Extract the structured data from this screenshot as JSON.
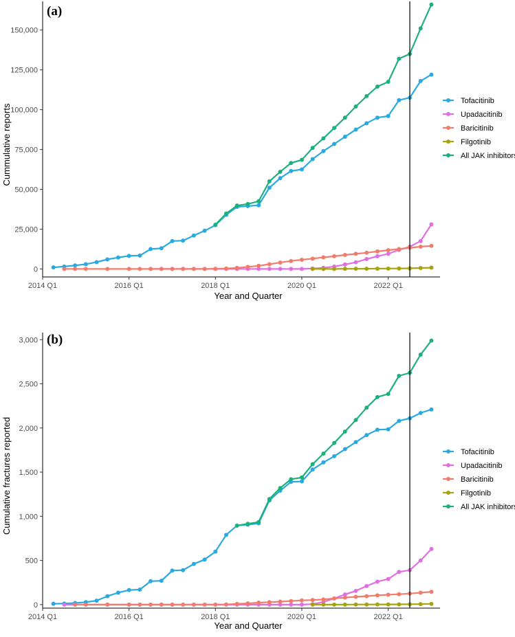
{
  "chart_data": [
    {
      "type": "line",
      "panel_label": "(a)",
      "title": "",
      "xlabel": "Year and Quarter",
      "ylabel": "Cummulative reports",
      "xlim": [
        2014.0,
        2023.2
      ],
      "ylim": [
        -5000,
        168000
      ],
      "x_ticks": [
        {
          "value": 2014.0,
          "label": "2014 Q1"
        },
        {
          "value": 2016.0,
          "label": "2016 Q1"
        },
        {
          "value": 2018.0,
          "label": "2018 Q1"
        },
        {
          "value": 2020.0,
          "label": "2020 Q1"
        },
        {
          "value": 2022.0,
          "label": "2022 Q1"
        }
      ],
      "y_ticks": [
        {
          "value": 0,
          "label": "0"
        },
        {
          "value": 25000,
          "label": "25,000"
        },
        {
          "value": 50000,
          "label": "50,000"
        },
        {
          "value": 75000,
          "label": "75,000"
        },
        {
          "value": 100000,
          "label": "100,000"
        },
        {
          "value": 125000,
          "label": "125,000"
        },
        {
          "value": 150000,
          "label": "150,000"
        }
      ],
      "vline_x": 2022.5,
      "legend_position": "right",
      "series": [
        {
          "name": "Tofacitinib",
          "color": "#29a9e0",
          "x": [
            2014.25,
            2014.5,
            2014.75,
            2015.0,
            2015.25,
            2015.5,
            2015.75,
            2016.0,
            2016.25,
            2016.5,
            2016.75,
            2017.0,
            2017.25,
            2017.5,
            2017.75,
            2018.0,
            2018.25,
            2018.5,
            2018.75,
            2019.0,
            2019.25,
            2019.5,
            2019.75,
            2020.0,
            2020.25,
            2020.5,
            2020.75,
            2021.0,
            2021.25,
            2021.5,
            2021.75,
            2022.0,
            2022.25,
            2022.5,
            2022.75,
            2023.0
          ],
          "values": [
            1000,
            1500,
            2200,
            3000,
            4300,
            6000,
            7200,
            8200,
            8400,
            12500,
            13000,
            17500,
            17800,
            21000,
            24000,
            27500,
            34000,
            39000,
            39500,
            40000,
            51000,
            57000,
            61500,
            62500,
            69000,
            74000,
            78500,
            83000,
            87500,
            91500,
            95000,
            96000,
            106000,
            107500,
            118000,
            122000
          ]
        },
        {
          "name": "Upadacitinib",
          "color": "#e06fe0",
          "x": [
            2016.5,
            2016.75,
            2017.0,
            2017.25,
            2017.5,
            2017.75,
            2018.0,
            2018.25,
            2018.5,
            2018.75,
            2019.0,
            2019.25,
            2019.5,
            2019.75,
            2020.0,
            2020.25,
            2020.5,
            2020.75,
            2021.0,
            2021.25,
            2021.5,
            2021.75,
            2022.0,
            2022.25,
            2022.5,
            2022.75,
            2023.0
          ],
          "values": [
            0,
            0,
            0,
            0,
            0,
            0,
            0,
            0,
            0,
            0,
            0,
            0,
            0,
            0,
            0,
            300,
            700,
            1500,
            2800,
            4200,
            6200,
            8000,
            9500,
            12000,
            14000,
            17500,
            28000
          ]
        },
        {
          "name": "Baricitinib",
          "color": "#f07c6c",
          "x": [
            2014.5,
            2014.75,
            2015.0,
            2015.5,
            2016.0,
            2016.25,
            2016.5,
            2016.75,
            2017.0,
            2017.25,
            2017.5,
            2017.75,
            2018.0,
            2018.25,
            2018.5,
            2018.75,
            2019.0,
            2019.25,
            2019.5,
            2019.75,
            2020.0,
            2020.25,
            2020.5,
            2020.75,
            2021.0,
            2021.25,
            2021.5,
            2021.75,
            2022.0,
            2022.25,
            2022.5,
            2022.75,
            2023.0
          ],
          "values": [
            0,
            0,
            0,
            0,
            0,
            0,
            0,
            0,
            0,
            0,
            0,
            0,
            100,
            300,
            700,
            1300,
            2000,
            3000,
            4000,
            5000,
            5800,
            6500,
            7300,
            8000,
            8800,
            9500,
            10200,
            11000,
            11800,
            12500,
            13300,
            14000,
            14500
          ]
        },
        {
          "name": "Filgotinib",
          "color": "#a6a30c",
          "x": [
            2020.25,
            2020.5,
            2020.75,
            2021.0,
            2021.25,
            2021.5,
            2021.75,
            2022.0,
            2022.25,
            2022.5,
            2022.75,
            2023.0
          ],
          "values": [
            0,
            0,
            0,
            100,
            100,
            150,
            200,
            250,
            300,
            400,
            600,
            800
          ]
        },
        {
          "name": "All JAK inhibitors",
          "color": "#1bb07c",
          "x": [
            2018.0,
            2018.25,
            2018.5,
            2018.75,
            2019.0,
            2019.25,
            2019.5,
            2019.75,
            2020.0,
            2020.25,
            2020.5,
            2020.75,
            2021.0,
            2021.25,
            2021.5,
            2021.75,
            2022.0,
            2022.25,
            2022.5,
            2022.75,
            2023.0
          ],
          "values": [
            27800,
            34800,
            39800,
            40800,
            42500,
            55000,
            61000,
            66500,
            68500,
            76000,
            82000,
            88500,
            95000,
            102000,
            108500,
            114500,
            117500,
            132000,
            135000,
            151000,
            166000
          ]
        }
      ]
    },
    {
      "type": "line",
      "panel_label": "(b)",
      "title": "",
      "xlabel": "Year and Quarter",
      "ylabel": "Cumulative fractures reported",
      "xlim": [
        2014.0,
        2023.2
      ],
      "ylim": [
        -40,
        3080
      ],
      "x_ticks": [
        {
          "value": 2014.0,
          "label": "2014 Q1"
        },
        {
          "value": 2016.0,
          "label": "2016 Q1"
        },
        {
          "value": 2018.0,
          "label": "2018 Q1"
        },
        {
          "value": 2020.0,
          "label": "2020 Q1"
        },
        {
          "value": 2022.0,
          "label": "2022 Q1"
        }
      ],
      "y_ticks": [
        {
          "value": 0,
          "label": "0"
        },
        {
          "value": 500,
          "label": "500"
        },
        {
          "value": 1000,
          "label": "1,000"
        },
        {
          "value": 1500,
          "label": "1,500"
        },
        {
          "value": 2000,
          "label": "2,000"
        },
        {
          "value": 2500,
          "label": "2,500"
        },
        {
          "value": 3000,
          "label": "3,000"
        }
      ],
      "vline_x": 2022.5,
      "legend_position": "right",
      "series": [
        {
          "name": "Tofacitinib",
          "color": "#29a9e0",
          "x": [
            2014.25,
            2014.5,
            2014.75,
            2015.0,
            2015.25,
            2015.5,
            2015.75,
            2016.0,
            2016.25,
            2016.5,
            2016.75,
            2017.0,
            2017.25,
            2017.5,
            2017.75,
            2018.0,
            2018.25,
            2018.5,
            2018.75,
            2019.0,
            2019.25,
            2019.5,
            2019.75,
            2020.0,
            2020.25,
            2020.5,
            2020.75,
            2021.0,
            2021.25,
            2021.5,
            2021.75,
            2022.0,
            2022.25,
            2022.5,
            2022.75,
            2023.0
          ],
          "values": [
            10,
            12,
            18,
            28,
            45,
            95,
            135,
            165,
            170,
            265,
            270,
            385,
            390,
            460,
            510,
            600,
            790,
            895,
            905,
            920,
            1180,
            1290,
            1390,
            1395,
            1530,
            1610,
            1680,
            1760,
            1840,
            1920,
            1980,
            1985,
            2080,
            2110,
            2170,
            2210
          ]
        },
        {
          "name": "Upadacitinib",
          "color": "#e06fe0",
          "x": [
            2014.5,
            2014.75,
            2015.0,
            2015.5,
            2016.0,
            2016.25,
            2016.5,
            2016.75,
            2017.0,
            2017.25,
            2017.5,
            2017.75,
            2018.0,
            2018.25,
            2018.5,
            2018.75,
            2019.0,
            2019.25,
            2019.5,
            2019.75,
            2020.0,
            2020.25,
            2020.5,
            2020.75,
            2021.0,
            2021.25,
            2021.5,
            2021.75,
            2022.0,
            2022.25,
            2022.5,
            2022.75,
            2023.0
          ],
          "values": [
            0,
            0,
            0,
            0,
            0,
            0,
            0,
            0,
            0,
            0,
            0,
            0,
            0,
            0,
            0,
            0,
            0,
            0,
            0,
            0,
            0,
            5,
            30,
            70,
            115,
            155,
            210,
            260,
            290,
            370,
            390,
            500,
            630
          ]
        },
        {
          "name": "Baricitinib",
          "color": "#f07c6c",
          "x": [
            2014.75,
            2015.0,
            2015.5,
            2016.0,
            2016.25,
            2016.5,
            2016.75,
            2017.0,
            2017.25,
            2017.5,
            2017.75,
            2018.0,
            2018.25,
            2018.5,
            2018.75,
            2019.0,
            2019.25,
            2019.5,
            2019.75,
            2020.0,
            2020.25,
            2020.5,
            2020.75,
            2021.0,
            2021.25,
            2021.5,
            2021.75,
            2022.0,
            2022.25,
            2022.5,
            2022.75,
            2023.0
          ],
          "values": [
            0,
            0,
            0,
            0,
            0,
            0,
            0,
            0,
            0,
            0,
            0,
            0,
            2,
            8,
            14,
            22,
            28,
            34,
            40,
            48,
            52,
            58,
            70,
            80,
            88,
            95,
            105,
            112,
            118,
            125,
            135,
            145
          ]
        },
        {
          "name": "Filgotinib",
          "color": "#a6a30c",
          "x": [
            2020.25,
            2020.5,
            2020.75,
            2021.0,
            2021.25,
            2021.5,
            2021.75,
            2022.0,
            2022.25,
            2022.5,
            2022.75,
            2023.0
          ],
          "values": [
            0,
            0,
            0,
            0,
            1,
            1,
            2,
            2,
            3,
            4,
            6,
            8
          ]
        },
        {
          "name": "All JAK inhibitors",
          "color": "#1bb07c",
          "x": [
            2018.5,
            2018.75,
            2019.0,
            2019.25,
            2019.5,
            2019.75,
            2020.0,
            2020.25,
            2020.5,
            2020.75,
            2021.0,
            2021.25,
            2021.5,
            2021.75,
            2022.0,
            2022.25,
            2022.5,
            2022.75,
            2023.0
          ],
          "values": [
            895,
            915,
            935,
            1195,
            1320,
            1420,
            1440,
            1590,
            1710,
            1830,
            1960,
            2090,
            2230,
            2350,
            2385,
            2590,
            2625,
            2830,
            2990
          ]
        }
      ]
    }
  ]
}
